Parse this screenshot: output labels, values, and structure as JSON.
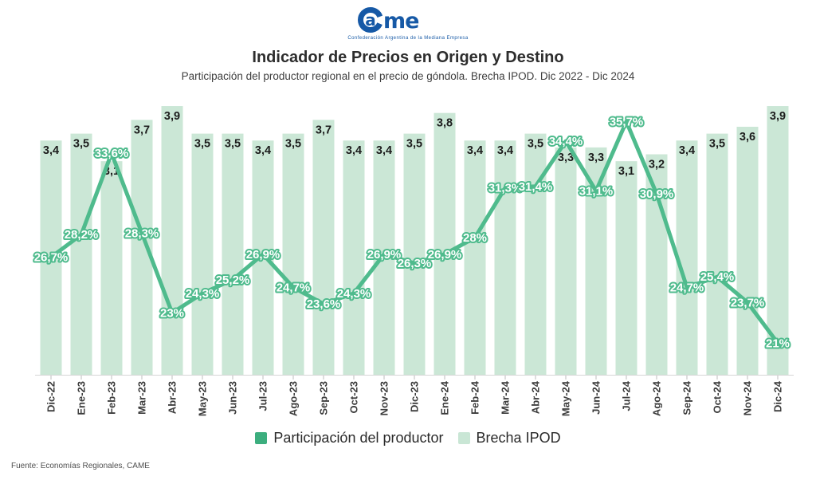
{
  "header": {
    "logo": {
      "circle_letter": "a",
      "rest": "me"
    },
    "logo_subtext": "Confederación Argentina de la Mediana Empresa",
    "logo_color": "#1659a6",
    "title": "Indicador de Precios en Origen y Destino",
    "subtitle": "Participación del productor regional en el precio de góndola. Brecha IPOD. Dic 2022 - Dic 2024"
  },
  "chart_data": {
    "type": "bar+line",
    "title": "Indicador de Precios en Origen y Destino",
    "categories": [
      "Dic-22",
      "Ene-23",
      "Feb-23",
      "Mar-23",
      "Abr-23",
      "May-23",
      "Jun-23",
      "Jul-23",
      "Ago-23",
      "Sep-23",
      "Oct-23",
      "Nov-23",
      "Dic-23",
      "Ene-24",
      "Feb-24",
      "Mar-24",
      "Abr-24",
      "May-24",
      "Jun-24",
      "Jul-24",
      "Ago-24",
      "Sep-24",
      "Oct-24",
      "Nov-24",
      "Dic-24"
    ],
    "series": [
      {
        "name": "Brecha IPOD",
        "type": "bar",
        "color": "#cbe7d6",
        "values": [
          3.4,
          3.5,
          3.1,
          3.7,
          3.9,
          3.5,
          3.5,
          3.4,
          3.5,
          3.7,
          3.4,
          3.4,
          3.5,
          3.8,
          3.4,
          3.4,
          3.5,
          3.3,
          3.3,
          3.1,
          3.2,
          3.4,
          3.5,
          3.6,
          3.9
        ],
        "labels": [
          "3,4",
          "3,5",
          "3,1",
          "3,7",
          "3,9",
          "3,5",
          "3,5",
          "3,4",
          "3,5",
          "3,7",
          "3,4",
          "3,4",
          "3,5",
          "3,8",
          "3,4",
          "3,4",
          "3,5",
          "3,3",
          "3,3",
          "3,1",
          "3,2",
          "3,4",
          "3,5",
          "3,6",
          "3,9"
        ]
      },
      {
        "name": "Participación del productor",
        "type": "line",
        "color": "#4fbb8d",
        "values": [
          26.7,
          28.2,
          33.6,
          28.3,
          23,
          24.3,
          25.2,
          26.9,
          24.7,
          23.6,
          24.3,
          26.9,
          26.3,
          26.9,
          28,
          31.3,
          31.4,
          34.4,
          31.1,
          35.7,
          30.9,
          24.7,
          25.4,
          23.7,
          21
        ],
        "labels": [
          "26,7%",
          "28,2%",
          "33,6%",
          "28,3%",
          "23%",
          "24,3%",
          "25,2%",
          "26,9%",
          "24,7%",
          "23,6%",
          "24,3%",
          "26,9%",
          "26,3%",
          "26,9%",
          "28%",
          "31,3%",
          "31,4%",
          "34,4%",
          "31,1%",
          "35,7%",
          "30,9%",
          "24,7%",
          "25,4%",
          "23,7%",
          "21%"
        ]
      }
    ],
    "bar_axis_range": [
      0,
      4
    ],
    "line_axis_visible_range": [
      19,
      37
    ],
    "grid": false,
    "legend_position": "bottom"
  },
  "legend": {
    "items": [
      {
        "label": "Participación del productor",
        "color": "#3cae7e"
      },
      {
        "label": "Brecha IPOD",
        "color": "#c9e6d5"
      }
    ]
  },
  "footer": {
    "source": "Fuente: Economías Regionales, CAME"
  }
}
